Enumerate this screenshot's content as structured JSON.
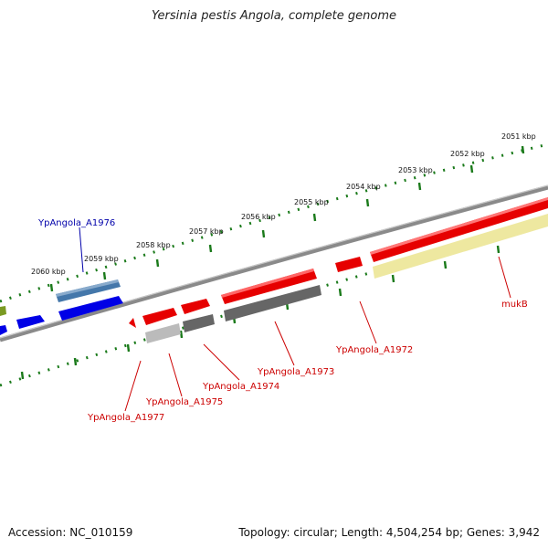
{
  "title": "Yersinia pestis Angola, complete genome",
  "accession_text": "Accession: NC_010159",
  "topology_text": "Topology: circular; Length: 4,504,254 bp; Genes: 3,942",
  "tick_labels": [
    "2051 kbp",
    "2052 kbp",
    "2053 kbp",
    "2054 kbp",
    "2055 kbp",
    "2056 kbp",
    "2057 kbp",
    "2058 kbp",
    "2059 kbp",
    "2060 kbp"
  ],
  "gene_labels": [
    {
      "id": "mukb",
      "text": "mukB",
      "color": "#cc0000"
    },
    {
      "id": "a1972",
      "text": "YpAngola_A1972",
      "color": "#cc0000"
    },
    {
      "id": "a1973",
      "text": "YpAngola_A1973",
      "color": "#cc0000"
    },
    {
      "id": "a1974",
      "text": "YpAngola_A1974",
      "color": "#cc0000"
    },
    {
      "id": "a1975",
      "text": "YpAngola_A1975",
      "color": "#cc0000"
    },
    {
      "id": "a1976",
      "text": "YpAngola_A1976",
      "color": "#0000aa"
    },
    {
      "id": "a1977",
      "text": "YpAngola_A1977",
      "color": "#cc0000"
    }
  ],
  "colors": {
    "backbone": "#8a8a8a",
    "tick_mark": "#1a7a1a",
    "gene_red": "#e60000",
    "gene_blue": "#0000e6",
    "gene_steel": "#4477aa",
    "gene_gray": "#666666",
    "gene_light_gray": "#bbbbbb",
    "gene_yellow": "#eee8a0",
    "gene_olive": "#7a9a22"
  }
}
